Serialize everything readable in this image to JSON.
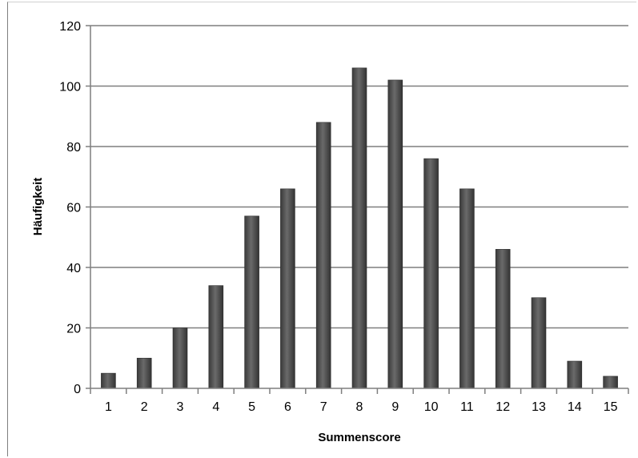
{
  "chart_data": {
    "type": "bar",
    "title": "",
    "xlabel": "Summenscore",
    "ylabel": "Häufigkeit",
    "categories": [
      "1",
      "2",
      "3",
      "4",
      "5",
      "6",
      "7",
      "8",
      "9",
      "10",
      "11",
      "12",
      "13",
      "14",
      "15"
    ],
    "values": [
      5,
      10,
      20,
      34,
      57,
      66,
      88,
      106,
      102,
      76,
      66,
      46,
      30,
      9,
      4
    ],
    "ylim": [
      0,
      120
    ],
    "yticks": [
      0,
      20,
      40,
      60,
      80,
      100,
      120
    ],
    "grid": true,
    "legend": "none",
    "bar_color": "#555555",
    "grid_color": "#7f7f7f"
  }
}
